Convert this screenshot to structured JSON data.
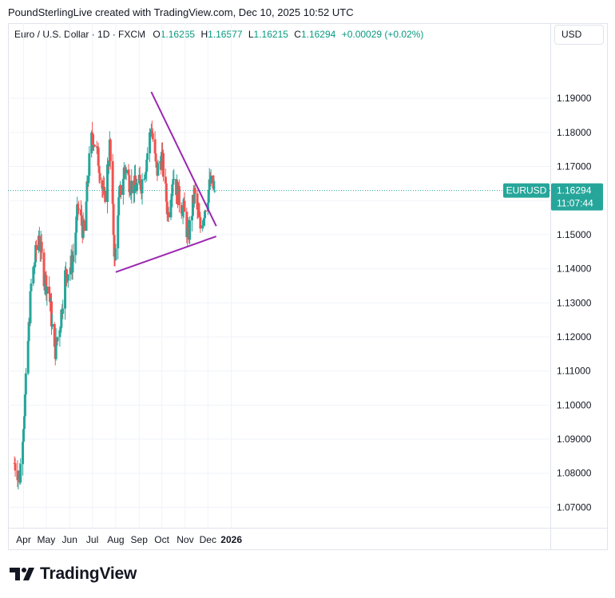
{
  "header": {
    "text": "PoundSterlingLive created with TradingView.com, Dec 10, 2025 10:52 UTC"
  },
  "legend": {
    "symbol": "Euro / U.S. Dollar · 1D · FXCM",
    "o_label": "O",
    "o_value": "1.16265",
    "h_label": "H",
    "h_value": "1.16577",
    "l_label": "L",
    "l_value": "1.16215",
    "c_label": "C",
    "c_value": "1.16294",
    "change": "+0.00029 (+0.02%)"
  },
  "currency_button": "USD",
  "brand": {
    "name": "TradingView"
  },
  "colors": {
    "up": "#26a69a",
    "down": "#ef5350",
    "trendline": "#9c27b0",
    "price_label": "#26a69a",
    "text": "#131722"
  },
  "chart_data": {
    "type": "candlestick",
    "symbol": "EURUSD",
    "y_ticks": [
      "1.19000",
      "1.18000",
      "1.17000",
      "1.16000",
      "1.15000",
      "1.14000",
      "1.13000",
      "1.12000",
      "1.11000",
      "1.10000",
      "1.09000",
      "1.08000",
      "1.07000"
    ],
    "x_ticks": [
      "Apr",
      "May",
      "Jun",
      "Jul",
      "Aug",
      "Sep",
      "Oct",
      "Nov",
      "Dec",
      "2026"
    ],
    "ylim": [
      1.064,
      1.2055
    ],
    "last_price": 1.16294,
    "last_price_label": "EURUSD",
    "last_price_value": "1.16294",
    "countdown": "11:07:44",
    "grid": true,
    "anchors": [
      [
        "2025-03-20",
        1.083
      ],
      [
        "2025-03-27",
        1.079
      ],
      [
        "2025-04-03",
        1.102
      ],
      [
        "2025-04-11",
        1.135
      ],
      [
        "2025-04-21",
        1.15
      ],
      [
        "2025-04-28",
        1.138
      ],
      [
        "2025-05-05",
        1.133
      ],
      [
        "2025-05-12",
        1.115
      ],
      [
        "2025-05-20",
        1.125
      ],
      [
        "2025-05-26",
        1.138
      ],
      [
        "2025-06-05",
        1.142
      ],
      [
        "2025-06-12",
        1.158
      ],
      [
        "2025-06-20",
        1.15
      ],
      [
        "2025-06-26",
        1.169
      ],
      [
        "2025-07-01",
        1.18
      ],
      [
        "2025-07-09",
        1.172
      ],
      [
        "2025-07-17",
        1.16
      ],
      [
        "2025-07-24",
        1.176
      ],
      [
        "2025-07-31",
        1.141
      ],
      [
        "2025-08-04",
        1.158
      ],
      [
        "2025-08-13",
        1.17
      ],
      [
        "2025-08-20",
        1.165
      ],
      [
        "2025-08-27",
        1.164
      ],
      [
        "2025-09-04",
        1.165
      ],
      [
        "2025-09-10",
        1.171
      ],
      [
        "2025-09-17",
        1.182
      ],
      [
        "2025-09-24",
        1.168
      ],
      [
        "2025-10-01",
        1.173
      ],
      [
        "2025-10-09",
        1.156
      ],
      [
        "2025-10-16",
        1.168
      ],
      [
        "2025-10-23",
        1.161
      ],
      [
        "2025-10-30",
        1.157
      ],
      [
        "2025-11-05",
        1.149
      ],
      [
        "2025-11-13",
        1.162
      ],
      [
        "2025-11-21",
        1.152
      ],
      [
        "2025-11-28",
        1.159
      ],
      [
        "2025-12-04",
        1.165
      ],
      [
        "2025-12-10",
        1.16294
      ]
    ],
    "ohlc_last": {
      "open": 1.16265,
      "high": 1.16577,
      "low": 1.16215,
      "close": 1.16294
    },
    "annotations": [
      {
        "type": "trendline",
        "from": [
          "2025-09-17",
          1.1919
        ],
        "to": [
          "2025-12-12",
          1.1525
        ]
      },
      {
        "type": "trendline",
        "from": [
          "2025-08-01",
          1.139
        ],
        "to": [
          "2025-12-12",
          1.1495
        ]
      }
    ]
  }
}
